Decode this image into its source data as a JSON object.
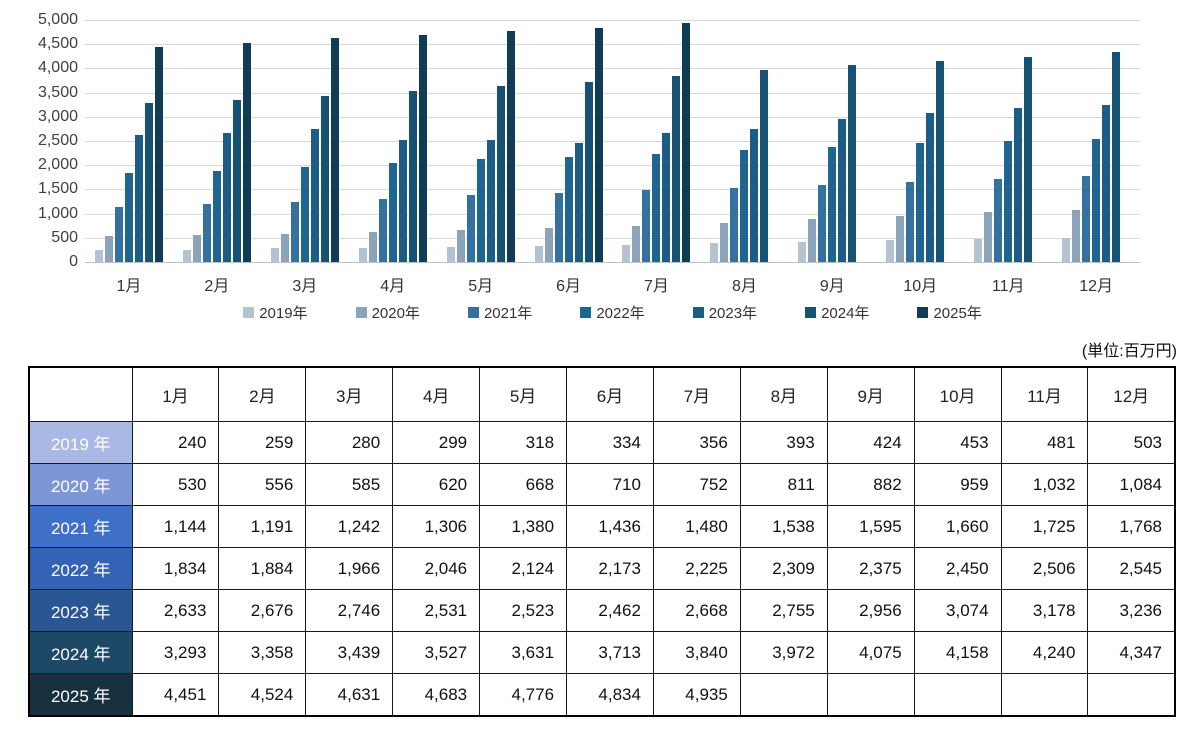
{
  "unit_label": "(単位:百万円)",
  "chart_data": {
    "type": "bar",
    "title": "",
    "xlabel": "",
    "ylabel": "",
    "ylim": [
      0,
      5000
    ],
    "ytick_step": 500,
    "grid": true,
    "legend_position": "bottom",
    "categories": [
      "1月",
      "2月",
      "3月",
      "4月",
      "5月",
      "6月",
      "7月",
      "8月",
      "9月",
      "10月",
      "11月",
      "12月"
    ],
    "series": [
      {
        "name": "2019年",
        "color": "#b5c3d1",
        "values": [
          240,
          259,
          280,
          299,
          318,
          334,
          356,
          393,
          424,
          453,
          481,
          503
        ]
      },
      {
        "name": "2020年",
        "color": "#8ba4b9",
        "values": [
          530,
          556,
          585,
          620,
          668,
          710,
          752,
          811,
          882,
          959,
          1032,
          1084
        ]
      },
      {
        "name": "2021年",
        "color": "#34719f",
        "values": [
          1144,
          1191,
          1242,
          1306,
          1380,
          1436,
          1480,
          1538,
          1595,
          1660,
          1725,
          1768
        ]
      },
      {
        "name": "2022年",
        "color": "#1e6690",
        "values": [
          1834,
          1884,
          1966,
          2046,
          2124,
          2173,
          2225,
          2309,
          2375,
          2450,
          2506,
          2545
        ]
      },
      {
        "name": "2023年",
        "color": "#1d5d85",
        "values": [
          2633,
          2676,
          2746,
          2531,
          2523,
          2462,
          2668,
          2755,
          2956,
          3074,
          3178,
          3236
        ]
      },
      {
        "name": "2024年",
        "color": "#175174",
        "values": [
          3293,
          3358,
          3439,
          3527,
          3631,
          3713,
          3840,
          3972,
          4075,
          4158,
          4240,
          4347
        ]
      },
      {
        "name": "2025年",
        "color": "#113c55",
        "values": [
          4451,
          4524,
          4631,
          4683,
          4776,
          4834,
          4935,
          null,
          null,
          null,
          null,
          null
        ]
      }
    ]
  },
  "table": {
    "corner_label": "",
    "col_headers": [
      "1月",
      "2月",
      "3月",
      "4月",
      "5月",
      "6月",
      "7月",
      "8月",
      "9月",
      "10月",
      "11月",
      "12月"
    ],
    "rows": [
      {
        "label": "2019 年",
        "header_color": "#a9b8e4",
        "cells": [
          "240",
          "259",
          "280",
          "299",
          "318",
          "334",
          "356",
          "393",
          "424",
          "453",
          "481",
          "503"
        ]
      },
      {
        "label": "2020 年",
        "header_color": "#7d96d8",
        "cells": [
          "530",
          "556",
          "585",
          "620",
          "668",
          "710",
          "752",
          "811",
          "882",
          "959",
          "1,032",
          "1,084"
        ]
      },
      {
        "label": "2021 年",
        "header_color": "#3e70c8",
        "cells": [
          "1,144",
          "1,191",
          "1,242",
          "1,306",
          "1,380",
          "1,436",
          "1,480",
          "1,538",
          "1,595",
          "1,660",
          "1,725",
          "1,768"
        ]
      },
      {
        "label": "2022 年",
        "header_color": "#3463b5",
        "cells": [
          "1,834",
          "1,884",
          "1,966",
          "2,046",
          "2,124",
          "2,173",
          "2,225",
          "2,309",
          "2,375",
          "2,450",
          "2,506",
          "2,545"
        ]
      },
      {
        "label": "2023 年",
        "header_color": "#2b5694",
        "cells": [
          "2,633",
          "2,676",
          "2,746",
          "2,531",
          "2,523",
          "2,462",
          "2,668",
          "2,755",
          "2,956",
          "3,074",
          "3,178",
          "3,236"
        ]
      },
      {
        "label": "2024 年",
        "header_color": "#1d4966",
        "cells": [
          "3,293",
          "3,358",
          "3,439",
          "3,527",
          "3,631",
          "3,713",
          "3,840",
          "3,972",
          "4,075",
          "4,158",
          "4,240",
          "4,347"
        ]
      },
      {
        "label": "2025 年",
        "header_color": "#16303e",
        "cells": [
          "4,451",
          "4,524",
          "4,631",
          "4,683",
          "4,776",
          "4,834",
          "4,935",
          "",
          "",
          "",
          "",
          ""
        ]
      }
    ]
  }
}
